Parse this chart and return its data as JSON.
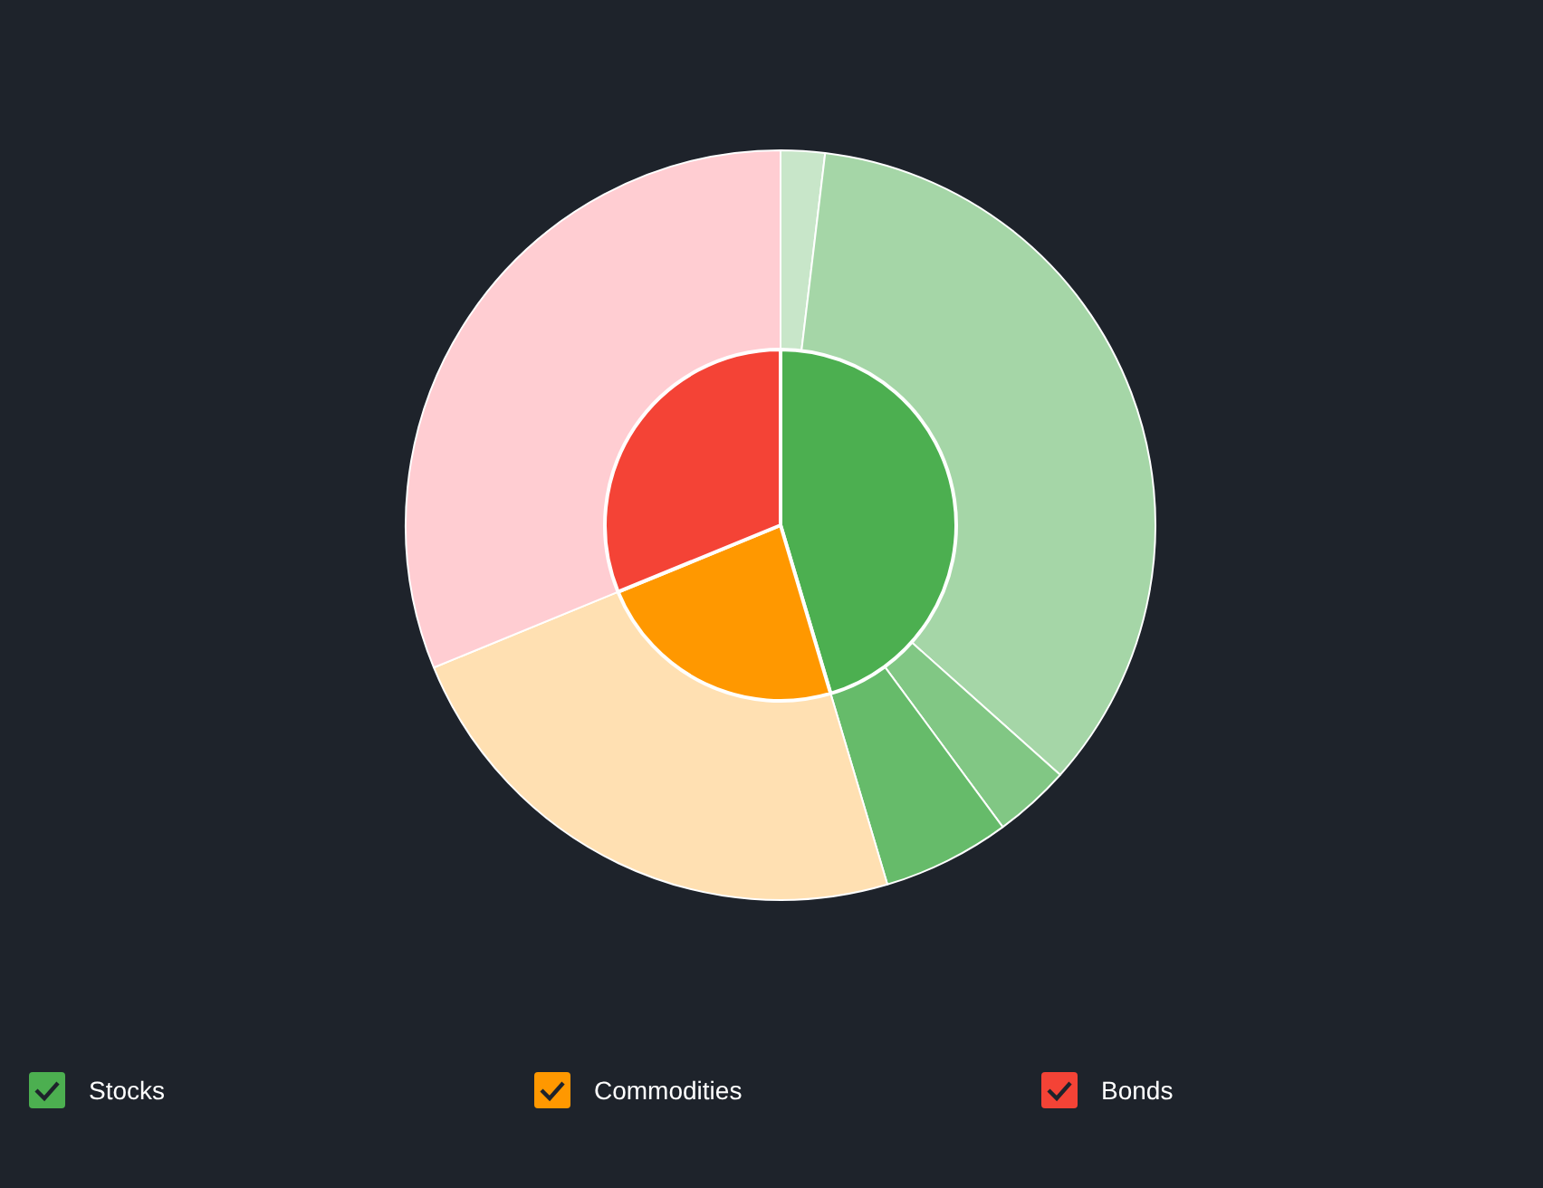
{
  "chart_data": [
    {
      "type": "pie",
      "categories": [
        "Stocks",
        "Commodities",
        "Bonds"
      ],
      "legend": "bottom",
      "values": [
        45.4,
        23.4,
        31.2
      ],
      "colors": [
        "#4caf50",
        "#ff9800",
        "#f44336"
      ]
    },
    {
      "type": "donut",
      "categories": [
        null,
        null,
        null,
        null,
        null,
        null
      ],
      "values": [
        1.9,
        34.7,
        3.3,
        5.5,
        23.4,
        31.2
      ],
      "colors": [
        "#c8e6c9",
        "#a5d6a7",
        "#81c784",
        "#66bb6a",
        "#ffe0b2",
        "#ffcdd2"
      ]
    }
  ]
}
